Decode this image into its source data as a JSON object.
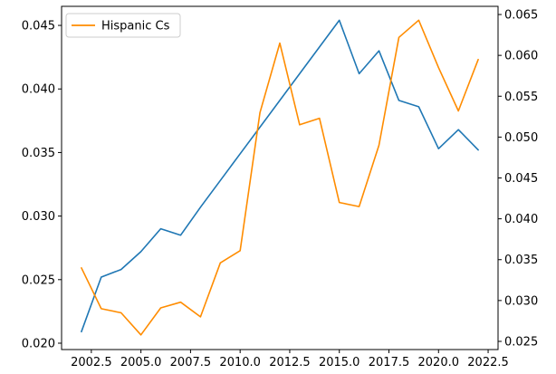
{
  "chart_data": {
    "type": "line",
    "title": "",
    "xlabel": "",
    "ylabel_left": "",
    "ylabel_right": "",
    "grid": false,
    "legend": {
      "placement": "top-left",
      "entries": [
        "Hispanic Cs"
      ]
    },
    "x": [
      2002,
      2003,
      2004,
      2005,
      2006,
      2007,
      2008,
      2009,
      2010,
      2011,
      2012,
      2013,
      2014,
      2015,
      2016,
      2017,
      2018,
      2019,
      2020,
      2021,
      2022
    ],
    "xlim": [
      2001.0,
      2023.0
    ],
    "x_ticks": [
      2002.5,
      2005.0,
      2007.5,
      2010.0,
      2012.5,
      2015.0,
      2017.5,
      2020.0,
      2022.5
    ],
    "x_tick_labels": [
      "2002.5",
      "2005.0",
      "2007.5",
      "2010.0",
      "2012.5",
      "2015.0",
      "2017.5",
      "2020.0",
      "2022.5"
    ],
    "y_left": {
      "lim": [
        0.0195,
        0.0465
      ],
      "ticks": [
        0.02,
        0.025,
        0.03,
        0.035,
        0.04,
        0.045
      ],
      "tick_labels": [
        "0.020",
        "0.025",
        "0.030",
        "0.035",
        "0.040",
        "0.045"
      ]
    },
    "y_right": {
      "lim": [
        0.024,
        0.066
      ],
      "ticks": [
        0.025,
        0.03,
        0.035,
        0.04,
        0.045,
        0.05,
        0.055,
        0.06,
        0.065
      ],
      "tick_labels": [
        "0.025",
        "0.030",
        "0.035",
        "0.040",
        "0.045",
        "0.050",
        "0.055",
        "0.060",
        "0.065"
      ]
    },
    "series": [
      {
        "name": "",
        "axis": "left",
        "color": "#1f77b4",
        "values": [
          0.0209,
          0.0252,
          0.0258,
          0.0272,
          0.029,
          0.0285,
          0.0307,
          0.0328,
          0.0349,
          0.037,
          0.0391,
          0.0412,
          0.0433,
          0.0454,
          0.0412,
          0.043,
          0.0391,
          0.0386,
          0.0353,
          0.0368,
          0.0352
        ]
      },
      {
        "name": "Hispanic Cs",
        "axis": "right",
        "color": "#ff8c00",
        "values": [
          0.034,
          0.029,
          0.0285,
          0.0258,
          0.0291,
          0.0298,
          0.028,
          0.0346,
          0.0361,
          0.053,
          0.0615,
          0.0515,
          0.0523,
          0.042,
          0.0415,
          0.049,
          0.0622,
          0.0643,
          0.0585,
          0.0532,
          0.0595
        ]
      }
    ]
  }
}
